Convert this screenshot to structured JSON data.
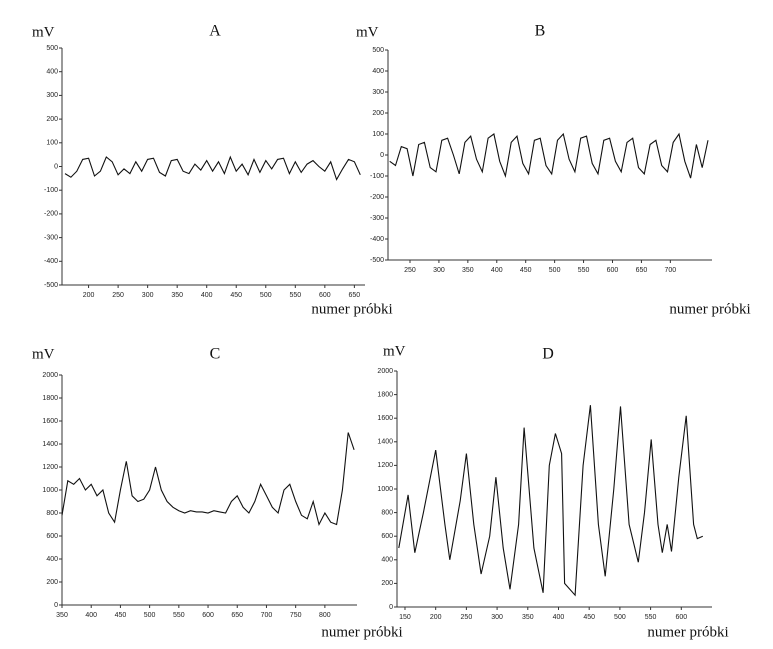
{
  "chart_data": [
    {
      "type": "line",
      "title": "A",
      "y_label": "mV",
      "x_label": "numer próbki",
      "x": [
        160,
        170,
        180,
        190,
        200,
        210,
        220,
        230,
        240,
        250,
        260,
        270,
        280,
        290,
        300,
        310,
        320,
        330,
        340,
        350,
        360,
        370,
        380,
        390,
        400,
        410,
        420,
        430,
        440,
        450,
        460,
        470,
        480,
        490,
        500,
        510,
        520,
        530,
        540,
        550,
        560,
        570,
        580,
        590,
        600,
        610,
        620,
        630,
        640,
        650,
        660
      ],
      "values": [
        -30,
        -45,
        -20,
        30,
        35,
        -40,
        -20,
        40,
        20,
        -35,
        -10,
        -30,
        20,
        -20,
        30,
        35,
        -25,
        -40,
        25,
        30,
        -20,
        -30,
        10,
        -15,
        25,
        -20,
        20,
        -30,
        40,
        -20,
        10,
        -35,
        30,
        -25,
        25,
        -10,
        30,
        35,
        -30,
        20,
        -25,
        10,
        25,
        0,
        -20,
        20,
        -55,
        -10,
        30,
        20,
        -35
      ],
      "color": "#111",
      "xlim": [
        155,
        668
      ],
      "ylim": [
        -500,
        500
      ],
      "xticks": [
        200,
        250,
        300,
        350,
        400,
        450,
        500,
        550,
        600,
        650
      ],
      "yticks": [
        -500,
        -400,
        -300,
        -200,
        -100,
        0,
        100,
        200,
        300,
        400,
        500
      ]
    },
    {
      "type": "line",
      "title": "B",
      "y_label": "mV",
      "x_label": "numer próbki",
      "x": [
        215,
        225,
        235,
        245,
        255,
        265,
        275,
        285,
        295,
        305,
        315,
        325,
        335,
        345,
        355,
        365,
        375,
        385,
        395,
        405,
        415,
        425,
        435,
        445,
        455,
        465,
        475,
        485,
        495,
        505,
        515,
        525,
        535,
        545,
        555,
        565,
        575,
        585,
        595,
        605,
        615,
        625,
        635,
        645,
        655,
        665,
        675,
        685,
        695,
        705,
        715,
        725,
        735,
        745,
        755,
        765
      ],
      "values": [
        -30,
        -50,
        40,
        30,
        -100,
        50,
        60,
        -60,
        -80,
        70,
        80,
        0,
        -90,
        60,
        90,
        -20,
        -80,
        80,
        100,
        -30,
        -100,
        60,
        90,
        -40,
        -90,
        70,
        80,
        -50,
        -90,
        70,
        100,
        -20,
        -80,
        80,
        90,
        -40,
        -90,
        70,
        80,
        -30,
        -80,
        60,
        80,
        -60,
        -90,
        50,
        70,
        -50,
        -80,
        60,
        100,
        -30,
        -110,
        50,
        -60,
        70
      ],
      "color": "#111",
      "xlim": [
        212,
        772
      ],
      "ylim": [
        -500,
        500
      ],
      "xticks": [
        250,
        300,
        350,
        400,
        450,
        500,
        550,
        600,
        650,
        700
      ],
      "yticks": [
        -500,
        -400,
        -300,
        -200,
        -100,
        0,
        100,
        200,
        300,
        400,
        500
      ]
    },
    {
      "type": "line",
      "title": "C",
      "y_label": "mV",
      "x_label": "numer próbki",
      "x": [
        350,
        360,
        370,
        380,
        390,
        400,
        410,
        420,
        430,
        440,
        450,
        460,
        470,
        480,
        490,
        500,
        510,
        520,
        530,
        540,
        550,
        560,
        570,
        580,
        590,
        600,
        610,
        620,
        630,
        640,
        650,
        660,
        670,
        680,
        690,
        700,
        710,
        720,
        730,
        740,
        750,
        760,
        770,
        780,
        790,
        800,
        810,
        820,
        830,
        840,
        850
      ],
      "values": [
        780,
        1080,
        1050,
        1100,
        1000,
        1050,
        950,
        1000,
        800,
        720,
        1000,
        1250,
        950,
        900,
        920,
        1000,
        1200,
        1000,
        900,
        850,
        820,
        800,
        820,
        810,
        810,
        800,
        820,
        810,
        800,
        900,
        950,
        850,
        800,
        900,
        1050,
        950,
        850,
        800,
        1000,
        1050,
        900,
        780,
        750,
        900,
        700,
        800,
        720,
        700,
        1000,
        1500,
        1350
      ],
      "color": "#111",
      "xlim": [
        350,
        855
      ],
      "ylim": [
        0,
        2000
      ],
      "xticks": [
        350,
        400,
        450,
        500,
        550,
        600,
        650,
        700,
        750,
        800
      ],
      "yticks": [
        0,
        200,
        400,
        600,
        800,
        1000,
        1200,
        1400,
        1600,
        1800,
        2000
      ]
    },
    {
      "type": "line",
      "title": "D",
      "y_label": "mV",
      "x_label": "numer próbki",
      "x": [
        140,
        155,
        166,
        180,
        200,
        215,
        223,
        240,
        250,
        262,
        274,
        288,
        298,
        310,
        321,
        335,
        344,
        360,
        375,
        385,
        395,
        405,
        410,
        427,
        440,
        452,
        465,
        476,
        490,
        501,
        515,
        530,
        540,
        551,
        562,
        569,
        577,
        584,
        596,
        608,
        620,
        626,
        635
      ],
      "values": [
        500,
        950,
        460,
        800,
        1330,
        700,
        400,
        900,
        1300,
        700,
        280,
        600,
        1100,
        500,
        150,
        700,
        1520,
        500,
        120,
        1200,
        1470,
        1300,
        200,
        100,
        1200,
        1710,
        700,
        260,
        1000,
        1700,
        700,
        380,
        800,
        1420,
        700,
        460,
        700,
        470,
        1100,
        1620,
        700,
        580,
        600
      ],
      "color": "#111",
      "xlim": [
        137,
        650
      ],
      "ylim": [
        0,
        2000
      ],
      "xticks": [
        150,
        200,
        250,
        300,
        350,
        400,
        450,
        500,
        550,
        600
      ],
      "yticks": [
        0,
        200,
        400,
        600,
        800,
        1000,
        1200,
        1400,
        1600,
        1800,
        2000
      ]
    }
  ]
}
